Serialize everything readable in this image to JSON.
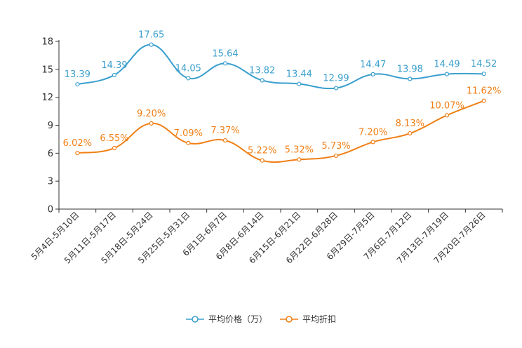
{
  "chart_data": {
    "type": "line",
    "title": "",
    "xlabel": "",
    "ylabel": "",
    "ylim": [
      0,
      18
    ],
    "yticks": [
      0,
      3,
      6,
      9,
      12,
      15,
      18
    ],
    "categories": [
      "5月4日-5月10日",
      "5月11日-5月17日",
      "5月18日-5月24日",
      "5月25日-5月31日",
      "6月1日-6月7日",
      "6月8日-6月14日",
      "6月15日-6月21日",
      "6月22日-6月28日",
      "6月29日-7月5日",
      "7月6日-7月12日",
      "7月13日-7月19日",
      "7月20日-7月26日"
    ],
    "series": [
      {
        "name": "平均价格（万）",
        "color": "#3a9fce",
        "values": [
          13.39,
          14.39,
          17.65,
          14.05,
          15.64,
          13.82,
          13.44,
          12.99,
          14.47,
          13.98,
          14.49,
          14.52
        ],
        "labels": [
          "13.39",
          "14.39",
          "17.65",
          "14.05",
          "15.64",
          "13.82",
          "13.44",
          "12.99",
          "14.47",
          "13.98",
          "14.49",
          "14.52"
        ]
      },
      {
        "name": "平均折扣",
        "color": "#f07f16",
        "values": [
          6.02,
          6.55,
          9.2,
          7.09,
          7.37,
          5.22,
          5.32,
          5.73,
          7.2,
          8.13,
          10.07,
          11.62
        ],
        "labels": [
          "6.02%",
          "6.55%",
          "9.20%",
          "7.09%",
          "7.37%",
          "5.22%",
          "5.32%",
          "5.73%",
          "7.20%",
          "8.13%",
          "10.07%",
          "11.62%"
        ]
      }
    ],
    "legend_position": "bottom-center",
    "grid": false
  }
}
